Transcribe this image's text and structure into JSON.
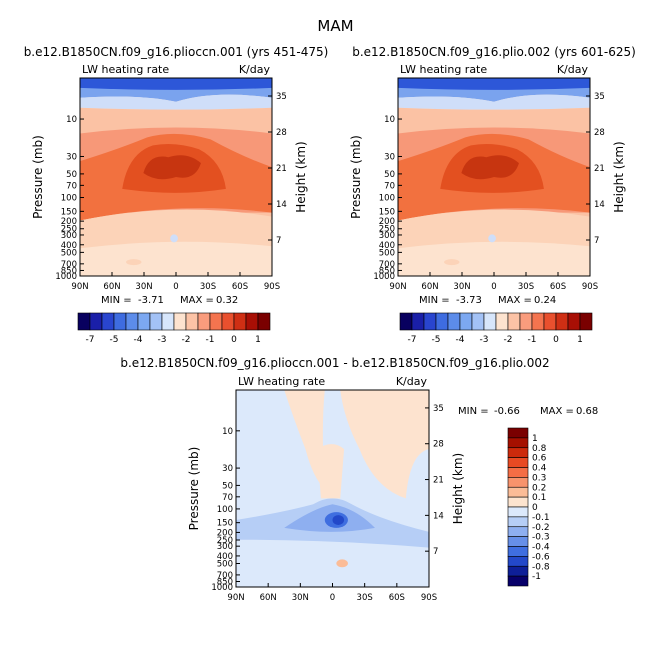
{
  "figure_title": "MAM",
  "chart_data": [
    {
      "type": "contour",
      "title": "b.e12.B1850CN.f09_g16.plioccn.001 (yrs 451-475)",
      "variable_label": "LW heating rate",
      "units_label": "K/day",
      "ylabel": "Pressure (mb)",
      "ylabel_right": "Height (km)",
      "x_ticks": [
        "90N",
        "60N",
        "30N",
        "0",
        "30S",
        "60S",
        "90S"
      ],
      "y_ticks": [
        "10",
        "30",
        "50",
        "70",
        "100",
        "150",
        "200",
        "250",
        "300",
        "400",
        "500",
        "700",
        "850",
        "1000"
      ],
      "y_ticks_right": [
        "35",
        "28",
        "21",
        "14",
        "7"
      ],
      "stats": {
        "min_label": "MIN =",
        "min_value": "-3.71",
        "max_label": "MAX =",
        "max_value": "0.32"
      },
      "colorbar_ticks": [
        "-7",
        "-5",
        "-4",
        "-3",
        "-2",
        "-1",
        "0",
        "1"
      ]
    },
    {
      "type": "contour",
      "title": "b.e12.B1850CN.f09_g16.plio.002 (yrs 601-625)",
      "variable_label": "LW heating rate",
      "units_label": "K/day",
      "ylabel": "Pressure (mb)",
      "ylabel_right": "Height (km)",
      "x_ticks": [
        "90N",
        "60N",
        "30N",
        "0",
        "30S",
        "60S",
        "90S"
      ],
      "y_ticks": [
        "10",
        "30",
        "50",
        "70",
        "100",
        "150",
        "200",
        "250",
        "300",
        "400",
        "500",
        "700",
        "850",
        "1000"
      ],
      "y_ticks_right": [
        "35",
        "28",
        "21",
        "14",
        "7"
      ],
      "stats": {
        "min_label": "MIN =",
        "min_value": "-3.73",
        "max_label": "MAX =",
        "max_value": "0.24"
      },
      "colorbar_ticks": [
        "-7",
        "-5",
        "-4",
        "-3",
        "-2",
        "-1",
        "0",
        "1"
      ]
    },
    {
      "type": "contour",
      "title": "b.e12.B1850CN.f09_g16.plioccn.001 - b.e12.B1850CN.f09_g16.plio.002",
      "variable_label": "LW heating rate",
      "units_label": "K/day",
      "ylabel": "Pressure (mb)",
      "ylabel_right": "Height (km)",
      "x_ticks": [
        "90N",
        "60N",
        "30N",
        "0",
        "30S",
        "60S",
        "90S"
      ],
      "y_ticks": [
        "10",
        "30",
        "50",
        "70",
        "100",
        "150",
        "200",
        "250",
        "300",
        "400",
        "500",
        "700",
        "850",
        "1000"
      ],
      "y_ticks_right": [
        "35",
        "28",
        "21",
        "14",
        "7"
      ],
      "stats": {
        "min_label": "MIN =",
        "min_value": "-0.66",
        "max_label": "MAX =",
        "max_value": "0.68"
      },
      "colorbar_ticks": [
        "1",
        "0.8",
        "0.6",
        "0.4",
        "0.3",
        "0.2",
        "0.1",
        "0",
        "-0.1",
        "-0.2",
        "-0.3",
        "-0.4",
        "-0.6",
        "-0.8",
        "-1"
      ]
    }
  ],
  "colors": {
    "scale_full": [
      "#08005f",
      "#1a1fa8",
      "#2945cf",
      "#3e6ce0",
      "#5c8cea",
      "#7ca8f1",
      "#a3c2f6",
      "#d7e6fb",
      "#fde3cf",
      "#fcc3a6",
      "#f99c7d",
      "#f4744f",
      "#e9502e",
      "#cf2f14",
      "#a80f05",
      "#7a0000"
    ],
    "diff_scale": [
      "#7a0000",
      "#a51000",
      "#cc2a0c",
      "#e84a23",
      "#f46d45",
      "#f8936c",
      "#fbbc97",
      "#fde4cf",
      "#dce9fb",
      "#b6cef6",
      "#8eaff0",
      "#668fe8",
      "#3f6ee0",
      "#2348c9",
      "#0e1f98",
      "#07006a"
    ],
    "panel_fill": [
      "#2d57d8",
      "#7aa3ee",
      "#cfdef9",
      "#fde3cf",
      "#fbc2a4",
      "#f79878",
      "#f2713f",
      "#e35020",
      "#c73510",
      "#fde3cf",
      "#fcd3b8"
    ],
    "diff_fill": [
      "#fde3cf",
      "#dce9fb",
      "#b6cef6",
      "#8eaff0",
      "#3f6ee0",
      "#2348c9",
      "#fbbc97"
    ]
  }
}
